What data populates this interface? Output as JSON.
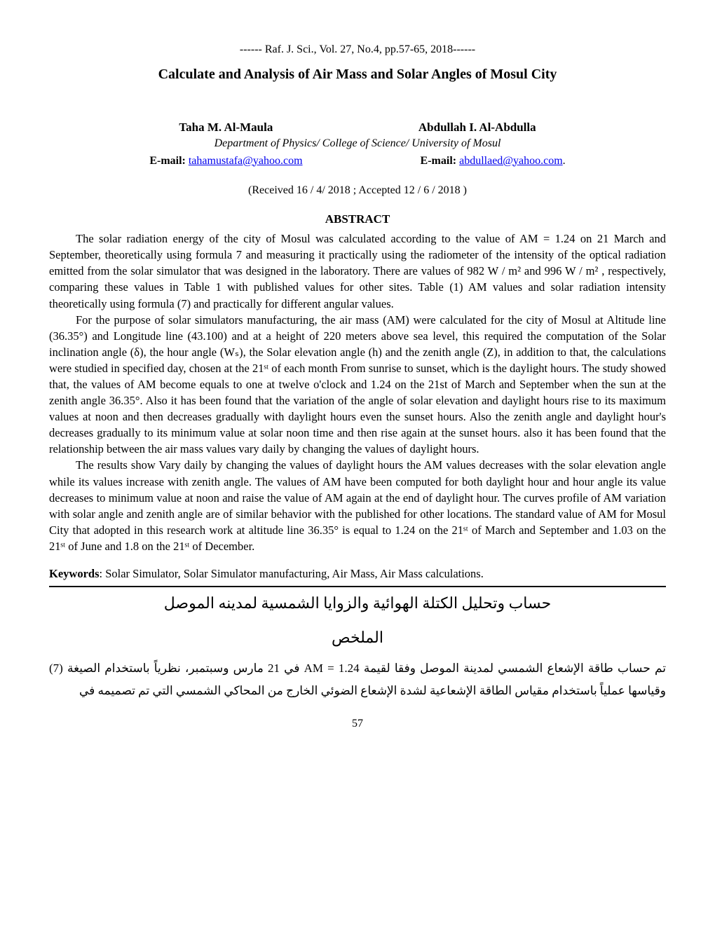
{
  "citation": "------ Raf. J. Sci., Vol. 27, No.4, pp.57-65, 2018------",
  "title": "Calculate and Analysis of Air Mass and Solar Angles of Mosul City",
  "author1": "Taha M. Al-Maula",
  "author2": "Abdullah I. Al-Abdulla",
  "department": "Department of Physics/ College of Science/ University of Mosul",
  "email_label": "E-mail:",
  "email1": "tahamustafa@yahoo.com",
  "email2": "abdullaed@yahoo.com",
  "dates": "(Received  16 / 4/ 2018  ;  Accepted   12 / 6 / 2018 )",
  "abstract_heading": "ABSTRACT",
  "abstract_p1": "The solar radiation energy of the city of Mosul was calculated according to the value of AM = 1.24 on 21 March and September, theoretically using formula 7 and measuring it practically using the radiometer of the intensity of the optical radiation emitted from the solar simulator that was designed in the laboratory. There are values of 982 W / m² and 996 W / m² , respectively, comparing these values in Table 1 with published values for other sites. Table (1) AM values and solar radiation intensity theoretically using formula (7) and practically for different angular values.",
  "abstract_p2": "For the purpose of solar simulators manufacturing, the air mass (AM) were calculated for the city of Mosul at Altitude line (36.35°) and Longitude line (43.100) and at a height of 220 meters above sea level, this required the computation of the Solar inclination angle (δ), the hour angle (Wₛ), the Solar elevation angle (h) and the zenith angle (Z), in addition to that, the calculations were studied in specified day, chosen at the 21ˢᵗ of each month From sunrise to sunset, which is the daylight hours. The study showed that, the values of AM become equals to one at twelve o'clock and 1.24 on the 21st of March and September when the sun at the zenith angle 36.35°. Also it has been found that the variation of the angle of solar elevation and daylight hours rise to its maximum values at noon and then decreases gradually with daylight hours even the sunset hours. Also the zenith angle and daylight hour's decreases gradually to its minimum value at solar noon time and then rise again at the sunset hours. also it has been found that the relationship between the air mass values vary daily by changing the values of daylight hours.",
  "abstract_p3": "The results show Vary daily by changing the values of daylight hours the AM values decreases with the solar elevation angle while its values increase with zenith angle. The values of AM have been computed for both daylight hour and hour angle its value decreases to minimum value at noon and raise the value of AM again at the end of daylight hour. The curves profile of AM variation with solar angle and zenith angle are of similar behavior with the published for other locations. The standard value of AM for Mosul City that adopted in this research work at altitude line 36.35° is equal to 1.24 on  the 21ˢᵗ of March and September and 1.03 on the 21ˢᵗ of June and 1.8 on the 21ˢᵗ of December.",
  "keywords_label": "Keywords",
  "keywords_text": ": Solar Simulator, Solar Simulator manufacturing, Air Mass, Air Mass calculations.",
  "arabic_title": "حساب وتحليل الكتلة الهوائية والزوايا الشمسية لمدينه الموصل",
  "arabic_abstract_heading": "الملخص",
  "arabic_p1": "تم حساب طاقة الإشعاع الشمسي لمدينة الموصل وفقا لقيمة AM = 1.24 في 21 مارس وسبتمبر، نظرياً باستخدام الصيغة (7) وقياسها عملياً باستخدام مقياس الطاقة الإشعاعية لشدة الإشعاع الضوئي الخارج من المحاكي الشمسي التي تم تصميمه في",
  "page_number": "57"
}
